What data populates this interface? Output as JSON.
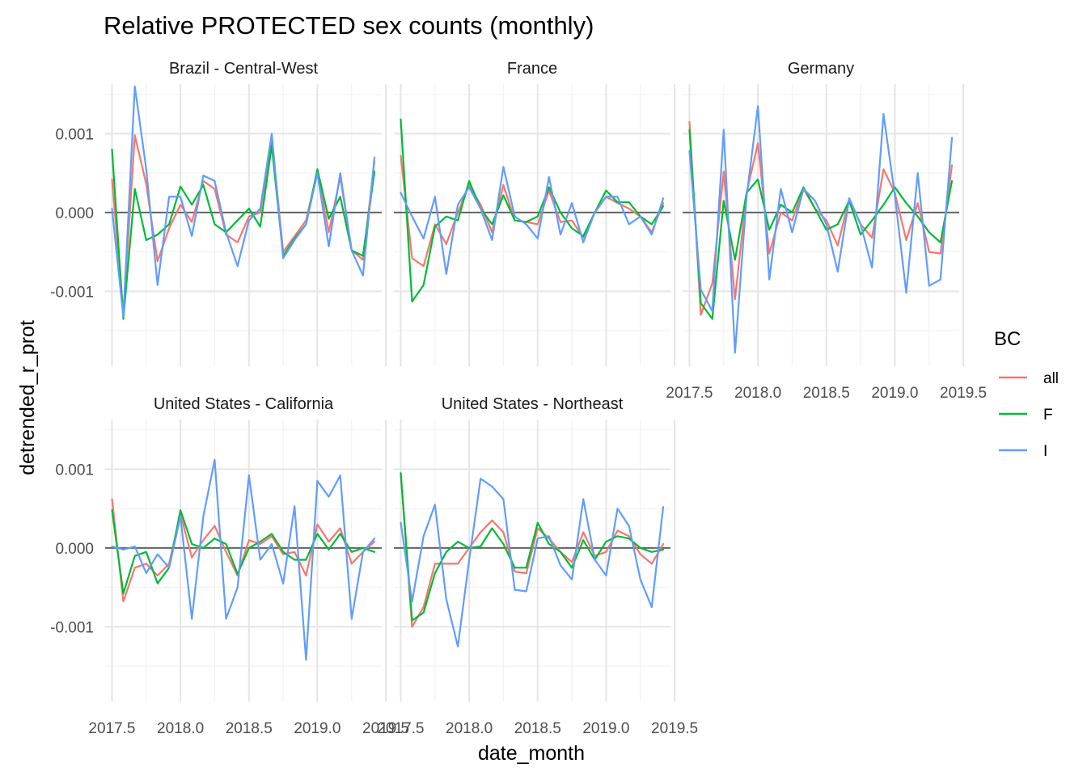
{
  "chart_data": {
    "type": "line",
    "title": "Relative PROTECTED sex counts (monthly)",
    "xlabel": "date_month",
    "ylabel": "detrended_r_prot",
    "xlim": [
      2017.45,
      2019.47
    ],
    "ylim": [
      -0.00195,
      0.00163
    ],
    "x_ticks": [
      2017.5,
      2018.0,
      2018.5,
      2019.0,
      2019.5
    ],
    "x_tick_labels": [
      "2017.5",
      "2018.0",
      "2018.5",
      "2019.0",
      "2019.5"
    ],
    "y_ticks": [
      0.001,
      0.0,
      -0.001
    ],
    "y_tick_labels": [
      "0.001",
      "0.000",
      "-0.001"
    ],
    "reference_line": 0,
    "grid": true,
    "legend": {
      "title": "BC",
      "position": "right",
      "entries": [
        {
          "label": "all",
          "color": "#F8766D"
        },
        {
          "label": "F",
          "color": "#00BA38"
        },
        {
          "label": "I",
          "color": "#619CFF"
        }
      ]
    },
    "x": [
      2017.5,
      2017.583,
      2017.667,
      2017.75,
      2017.833,
      2017.917,
      2018.0,
      2018.083,
      2018.167,
      2018.25,
      2018.333,
      2018.417,
      2018.5,
      2018.583,
      2018.667,
      2018.75,
      2018.833,
      2018.917,
      2019.0,
      2019.083,
      2019.167,
      2019.25,
      2019.333,
      2019.417
    ],
    "panels": [
      {
        "name": "Brazil - Central-West",
        "series": [
          {
            "name": "all",
            "values": [
              0.00042,
              -0.00128,
              0.00098,
              0.00036,
              -0.00062,
              -0.0002,
              0.0001,
              -0.00012,
              0.0004,
              0.0003,
              -0.00028,
              -0.00038,
              -5e-05,
              0.0,
              0.00095,
              -0.0005,
              -0.0003,
              -0.0001,
              0.00052,
              -0.00025,
              0.00045,
              -0.00048,
              -0.0006,
              0.00065
            ]
          },
          {
            "name": "F",
            "values": [
              0.0008,
              -0.00135,
              0.0003,
              -0.00035,
              -0.00028,
              -0.00015,
              0.00033,
              0.0001,
              0.00035,
              -0.00015,
              -0.00025,
              -0.0001,
              5e-05,
              -0.00018,
              0.00085,
              -0.00055,
              -0.00033,
              -0.00015,
              0.00055,
              -8e-05,
              0.0002,
              -0.00048,
              -0.00055,
              0.00052
            ]
          },
          {
            "name": "I",
            "values": [
              5e-05,
              -0.00132,
              0.0016,
              0.00055,
              -0.00092,
              0.0002,
              0.0002,
              -0.0003,
              0.00047,
              0.0004,
              -0.00025,
              -0.00068,
              -0.0001,
              5e-05,
              0.001,
              -0.00058,
              -0.00035,
              -0.00015,
              0.0005,
              -0.00043,
              0.0005,
              -0.00048,
              -0.0008,
              0.0007
            ]
          }
        ]
      },
      {
        "name": "France",
        "series": [
          {
            "name": "all",
            "values": [
              0.00072,
              -0.00058,
              -0.00068,
              -0.00015,
              -0.0004,
              0.0,
              0.00035,
              0.0001,
              -0.00025,
              0.00035,
              -0.0001,
              -0.00012,
              -0.00015,
              0.00028,
              -0.00012,
              -0.0001,
              -0.00032,
              0.0,
              0.0002,
              0.00012,
              5e-05,
              -5e-05,
              -0.00025,
              0.00012
            ]
          },
          {
            "name": "F",
            "values": [
              0.00118,
              -0.00113,
              -0.00092,
              -0.00018,
              -5e-05,
              -0.0001,
              0.0004,
              5e-05,
              -0.00015,
              0.00022,
              -0.0001,
              -0.00012,
              -5e-05,
              0.00032,
              0.0,
              -0.0002,
              -0.0003,
              0.0,
              0.00028,
              0.00013,
              0.00013,
              -5e-05,
              -0.00015,
              8e-05
            ]
          },
          {
            "name": "I",
            "values": [
              0.00025,
              -5e-05,
              -0.00033,
              0.0002,
              -0.00078,
              0.0001,
              0.00032,
              5e-05,
              -0.00035,
              0.00058,
              -5e-05,
              -0.00015,
              -0.00033,
              0.00045,
              -0.00028,
              0.00012,
              -0.00038,
              0.0,
              0.0002,
              0.0002,
              -0.00015,
              -5e-05,
              -0.00028,
              0.00018
            ]
          }
        ]
      },
      {
        "name": "Germany",
        "series": [
          {
            "name": "all",
            "values": [
              0.00115,
              -0.0013,
              -0.0009,
              0.00052,
              -0.0011,
              0.00025,
              0.00088,
              -0.00052,
              0.0,
              -0.0001,
              0.0003,
              5e-05,
              -0.0001,
              -0.00042,
              0.00018,
              -0.00015,
              -0.00032,
              0.00055,
              0.00025,
              -0.00035,
              0.00012,
              -0.0005,
              -0.00052,
              0.0006
            ]
          },
          {
            "name": "F",
            "values": [
              0.00105,
              -0.00115,
              -0.00135,
              0.00015,
              -0.0006,
              0.00025,
              0.00042,
              -0.00022,
              0.0001,
              0.0,
              0.00032,
              5e-05,
              -0.00022,
              -0.00015,
              0.00015,
              -0.00028,
              -0.0001,
              0.0001,
              0.00032,
              0.00012,
              -5e-05,
              -0.00025,
              -0.00038,
              0.0004
            ]
          },
          {
            "name": "I",
            "values": [
              0.00078,
              -0.00098,
              -0.00125,
              0.00105,
              -0.00178,
              0.0002,
              0.00135,
              -0.00085,
              0.0003,
              -0.00025,
              0.0003,
              0.00015,
              -0.00015,
              -0.00075,
              0.00018,
              -0.00015,
              -0.0007,
              0.00125,
              0.00022,
              -0.00102,
              0.0005,
              -0.00093,
              -0.00085,
              0.00095
            ]
          }
        ]
      },
      {
        "name": "United States - California",
        "series": [
          {
            "name": "all",
            "values": [
              0.00062,
              -0.00068,
              -0.00025,
              -0.0002,
              -0.00035,
              -0.0002,
              0.00043,
              -0.00012,
              0.0001,
              0.00028,
              -5e-05,
              -0.00035,
              0.0001,
              5e-05,
              0.00015,
              -8e-05,
              -5e-05,
              -0.00035,
              0.0003,
              8e-05,
              0.00025,
              -0.0002,
              -5e-05,
              8e-05
            ]
          },
          {
            "name": "F",
            "values": [
              0.00048,
              -0.00058,
              -0.0001,
              -5e-05,
              -0.00045,
              -0.00025,
              0.00048,
              5e-05,
              0.0,
              0.00012,
              5e-05,
              -0.00033,
              0.0,
              8e-05,
              0.00018,
              -5e-05,
              -0.00015,
              -0.00015,
              0.00018,
              -2e-05,
              0.00018,
              -5e-05,
              0.0,
              -5e-05
            ]
          },
          {
            "name": "I",
            "values": [
              2e-05,
              -2e-05,
              2e-05,
              -0.00032,
              -8e-05,
              -0.00025,
              0.0004,
              -0.0009,
              0.0004,
              0.00112,
              -0.0009,
              -0.0005,
              0.00092,
              -0.00015,
              5e-05,
              -0.00045,
              0.00053,
              -0.00142,
              0.00085,
              0.00065,
              0.00092,
              -0.0009,
              -5e-05,
              0.00012
            ]
          }
        ]
      },
      {
        "name": "United States - Northeast",
        "series": [
          {
            "name": "all",
            "values": [
              0.00095,
              -0.001,
              -0.00075,
              -0.0002,
              -0.0002,
              -0.0002,
              0.0,
              0.0002,
              0.00035,
              0.0002,
              -0.0003,
              -0.00032,
              0.00025,
              0.00012,
              -5e-05,
              -0.00018,
              0.0002,
              -0.0001,
              -5e-05,
              0.00022,
              0.00015,
              -8e-05,
              -0.0002,
              5e-05
            ]
          },
          {
            "name": "F",
            "values": [
              0.00095,
              -0.00092,
              -0.00082,
              -0.00032,
              -5e-05,
              8e-05,
              0.0,
              2e-05,
              0.00025,
              5e-05,
              -0.00025,
              -0.00025,
              0.00032,
              5e-05,
              -5e-05,
              -0.00025,
              0.0001,
              -0.00015,
              8e-05,
              0.00015,
              0.00012,
              0.0,
              -5e-05,
              -2e-05
            ]
          },
          {
            "name": "I",
            "values": [
              0.00032,
              -0.00068,
              0.00015,
              0.00055,
              -0.00065,
              -0.00125,
              -0.00015,
              0.00088,
              0.00078,
              0.00062,
              -0.00053,
              -0.00055,
              0.00012,
              0.00015,
              -0.00022,
              -0.0004,
              0.00062,
              -0.00015,
              -0.00035,
              0.0005,
              0.00028,
              -0.0004,
              -0.00075,
              0.00052
            ]
          }
        ]
      }
    ]
  }
}
